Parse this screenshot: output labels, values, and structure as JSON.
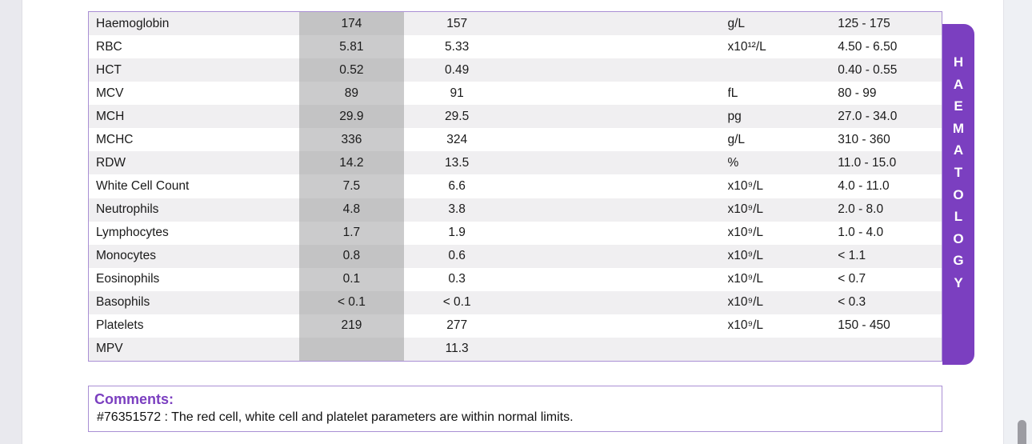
{
  "colors": {
    "accent_purple": "#7b3fc0",
    "table_border_purple": "#a98fd4",
    "stripe_bg": "#f0eff1",
    "result1_bg": "#cbcbcc",
    "result1_stripe_bg": "#c3c3c4",
    "scrollbar_thumb": "#9c9ca2"
  },
  "section_tab": {
    "label": "HAEMATOLOGY",
    "letters": [
      "H",
      "A",
      "E",
      "M",
      "A",
      "T",
      "O",
      "L",
      "O",
      "G",
      "Y"
    ]
  },
  "table": {
    "rows": [
      {
        "test": "Haemoglobin",
        "result1": "174",
        "result2": "157",
        "units": "g/L",
        "range": "125 - 175"
      },
      {
        "test": "RBC",
        "result1": "5.81",
        "result2": "5.33",
        "units": "x10¹²/L",
        "range": "4.50 - 6.50"
      },
      {
        "test": "HCT",
        "result1": "0.52",
        "result2": "0.49",
        "units": "",
        "range": "0.40 - 0.55"
      },
      {
        "test": "MCV",
        "result1": "89",
        "result2": "91",
        "units": "fL",
        "range": "80 - 99"
      },
      {
        "test": "MCH",
        "result1": "29.9",
        "result2": "29.5",
        "units": "pg",
        "range": "27.0 - 34.0"
      },
      {
        "test": "MCHC",
        "result1": "336",
        "result2": "324",
        "units": "g/L",
        "range": "310 - 360"
      },
      {
        "test": "RDW",
        "result1": "14.2",
        "result2": "13.5",
        "units": "%",
        "range": "11.0 - 15.0"
      },
      {
        "test": "White Cell Count",
        "result1": "7.5",
        "result2": "6.6",
        "units": "x10⁹/L",
        "range": "4.0 - 11.0"
      },
      {
        "test": "Neutrophils",
        "result1": "4.8",
        "result2": "3.8",
        "units": "x10⁹/L",
        "range": "2.0 - 8.0"
      },
      {
        "test": "Lymphocytes",
        "result1": "1.7",
        "result2": "1.9",
        "units": "x10⁹/L",
        "range": "1.0 - 4.0"
      },
      {
        "test": "Monocytes",
        "result1": "0.8",
        "result2": "0.6",
        "units": "x10⁹/L",
        "range": "< 1.1"
      },
      {
        "test": "Eosinophils",
        "result1": "0.1",
        "result2": "0.3",
        "units": "x10⁹/L",
        "range": "< 0.7"
      },
      {
        "test": "Basophils",
        "result1": "< 0.1",
        "result2": "< 0.1",
        "units": "x10⁹/L",
        "range": "< 0.3"
      },
      {
        "test": "Platelets",
        "result1": "219",
        "result2": "277",
        "units": "x10⁹/L",
        "range": "150 - 450"
      },
      {
        "test": "MPV",
        "result1": "",
        "result2": "11.3",
        "units": "",
        "range": ""
      }
    ]
  },
  "comments": {
    "heading": "Comments:",
    "text": "#76351572 : The red cell, white cell and platelet parameters are within normal limits."
  }
}
